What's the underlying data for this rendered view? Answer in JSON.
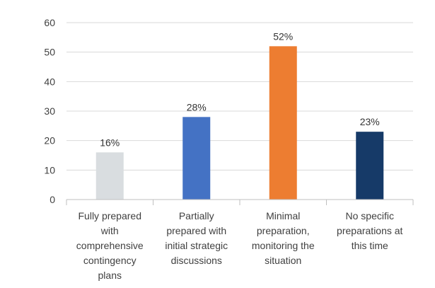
{
  "chart_data": {
    "type": "bar",
    "categories": [
      [
        "Fully prepared",
        "with",
        "comprehensive",
        "contingency",
        "plans"
      ],
      [
        "Partially",
        "prepared with",
        "initial strategic",
        "discussions"
      ],
      [
        "Minimal",
        "preparation,",
        "monitoring the",
        "situation"
      ],
      [
        "No specific",
        "preparations at",
        "this time"
      ]
    ],
    "values": [
      16,
      28,
      52,
      23
    ],
    "data_labels": [
      "16%",
      "28%",
      "52%",
      "23%"
    ],
    "colors": [
      "#d9dde0",
      "#4472c4",
      "#ed7d31",
      "#163a68"
    ],
    "yticks": [
      "0",
      "10",
      "20",
      "30",
      "40",
      "50",
      "60"
    ],
    "ylim": [
      0,
      60
    ],
    "grid": true,
    "title": "",
    "xlabel": "",
    "ylabel": ""
  }
}
